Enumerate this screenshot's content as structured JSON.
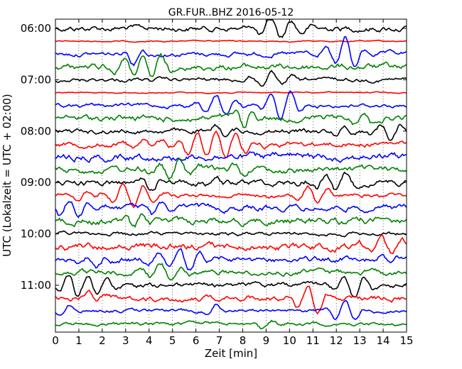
{
  "chart_data": {
    "type": "line",
    "title": "GR.FUR..BHZ 2016-05-12",
    "xlabel": "Zeit  [min]",
    "ylabel": "UTC (Lokalzeit = UTC + 02:00)",
    "xlim": [
      0,
      15
    ],
    "x_ticks": [
      "0",
      "1",
      "2",
      "3",
      "4",
      "5",
      "6",
      "7",
      "8",
      "9",
      "10",
      "11",
      "12",
      "13",
      "14",
      "15"
    ],
    "y_ticks": [
      "06:00",
      "07:00",
      "08:00",
      "09:00",
      "10:00",
      "11:00"
    ],
    "grid": "vertical dotted",
    "trace_colors": [
      "#000000",
      "#ff0000",
      "#0000ff",
      "#008000"
    ],
    "traces_per_hour": 4,
    "trace_start": "06:00",
    "trace_count": 24,
    "minutes_per_trace": 15
  }
}
